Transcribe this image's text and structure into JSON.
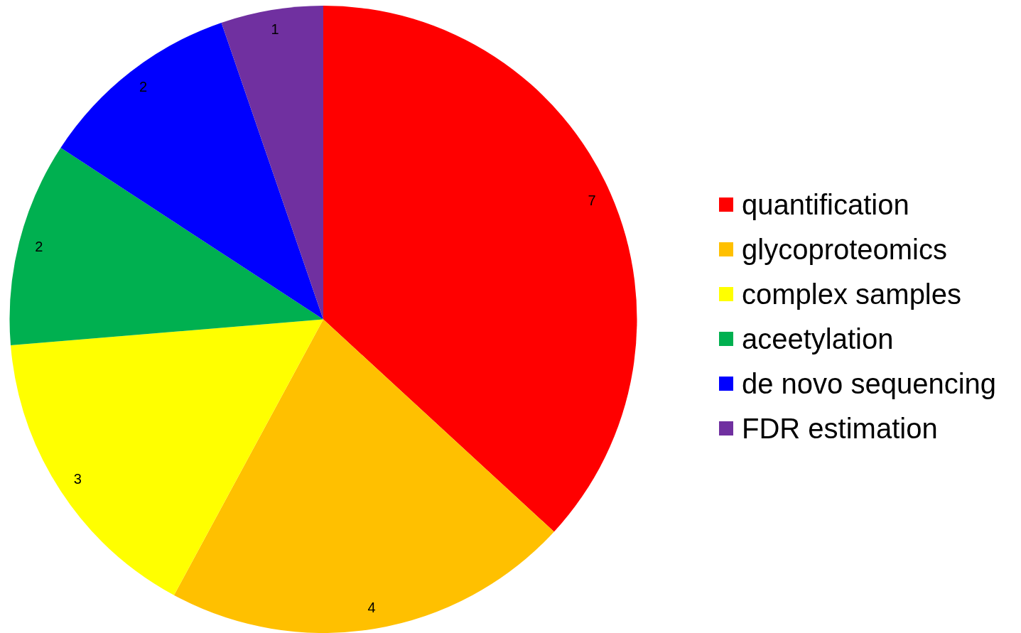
{
  "chart_data": {
    "type": "pie",
    "categories": [
      "quantification",
      "glycoproteomics",
      "complex samples",
      "aceetylation",
      "de novo sequencing",
      "FDR estimation"
    ],
    "values": [
      7,
      4,
      3,
      2,
      2,
      1
    ],
    "colors": [
      "#ff0000",
      "#ffc000",
      "#ffff00",
      "#00b050",
      "#0000ff",
      "#7030a0"
    ],
    "data_labels": true,
    "legend": "right"
  }
}
